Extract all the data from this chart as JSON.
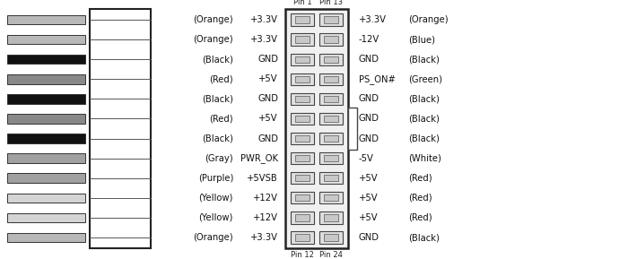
{
  "fig_width": 7.0,
  "fig_height": 2.89,
  "dpi": 100,
  "bg_color": "#ffffff",
  "left_wire_colors": [
    "#b8b8b8",
    "#b8b8b8",
    "#111111",
    "#888888",
    "#111111",
    "#888888",
    "#111111",
    "#a0a0a0",
    "#a0a0a0",
    "#d4d4d4",
    "#d4d4d4",
    "#b8b8b8"
  ],
  "left_labels_color": [
    "(Orange)",
    "+3.3V",
    "(Orange)",
    "+3.3V",
    "(Black)",
    "GND",
    "(Red)",
    "+5V",
    "(Black)",
    "GND",
    "(Red)",
    "+5V",
    "(Black)",
    "GND",
    "(Gray)",
    "PWR_OK",
    "(Purple)",
    "+5VSB",
    "(Yellow)",
    "+12V",
    "(Yellow)",
    "+12V",
    "(Orange)",
    "+3.3V"
  ],
  "left_labels": [
    [
      "(Orange)",
      "+3.3V"
    ],
    [
      "(Orange)",
      "+3.3V"
    ],
    [
      "(Black)",
      "GND"
    ],
    [
      "(Red)",
      "+5V"
    ],
    [
      "(Black)",
      "GND"
    ],
    [
      "(Red)",
      "+5V"
    ],
    [
      "(Black)",
      "GND"
    ],
    [
      "(Gray)",
      "PWR_OK"
    ],
    [
      "(Purple)",
      "+5VSB"
    ],
    [
      "(Yellow)",
      "+12V"
    ],
    [
      "(Yellow)",
      "+12V"
    ],
    [
      "(Orange)",
      "+3.3V"
    ]
  ],
  "right_labels": [
    [
      "+3.3V",
      "(Orange)"
    ],
    [
      "-12V",
      "(Blue)"
    ],
    [
      "GND",
      "(Black)"
    ],
    [
      "PS_ON#",
      "(Green)"
    ],
    [
      "GND",
      "(Black)"
    ],
    [
      "GND",
      "(Black)"
    ],
    [
      "GND",
      "(Black)"
    ],
    [
      "-5V",
      "(White)"
    ],
    [
      "+5V",
      "(Red)"
    ],
    [
      "+5V",
      "(Red)"
    ],
    [
      "+5V",
      "(Red)"
    ],
    [
      "GND",
      "(Black)"
    ]
  ]
}
